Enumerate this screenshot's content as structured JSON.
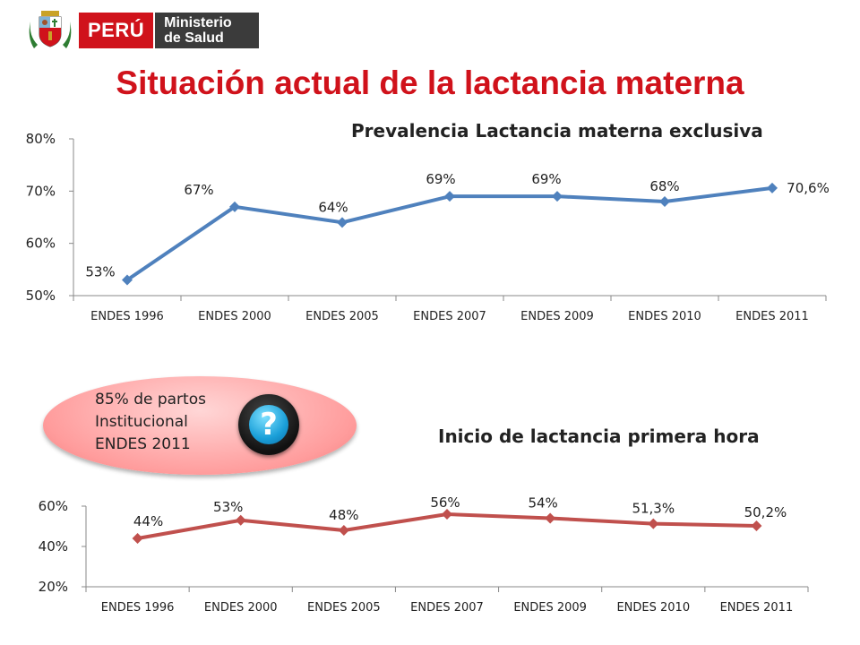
{
  "header": {
    "brand_country": "PERÚ",
    "brand_ministry_line1": "Ministerio",
    "brand_ministry_line2": "de Salud",
    "brand_red": "#d0121b",
    "brand_gray": "#3b3b3b",
    "crest_icon": "peru-coat-of-arms-icon"
  },
  "slide": {
    "title": "Situación actual de la lactancia materna",
    "title_color": "#d0121b"
  },
  "callout": {
    "lines": [
      "85% de partos",
      "Institucional",
      "ENDES 2011"
    ],
    "icon": "question-mark-icon"
  },
  "chart_data": [
    {
      "type": "line",
      "title": "Prevalencia  Lactancia materna exclusiva",
      "categories": [
        "ENDES 1996",
        "ENDES  2000",
        "ENDES 2005",
        "ENDES 2007",
        "ENDES  2009",
        "ENDES 2010",
        "ENDES 2011"
      ],
      "series": [
        {
          "values": [
            53,
            67,
            64,
            69,
            69,
            68,
            70.6
          ],
          "labels": [
            "53%",
            "67%",
            "64%",
            "69%",
            "69%",
            "68%",
            "70,6%"
          ],
          "color": "#4f81bd"
        }
      ],
      "yticks": [
        "50%",
        "60%",
        "70%",
        "80%"
      ],
      "ylim": [
        50,
        80
      ],
      "grid": "none",
      "legend": "none"
    },
    {
      "type": "line",
      "title": "Inicio de lactancia primera hora",
      "categories": [
        "ENDES 1996",
        "ENDES  2000",
        "ENDES 2005",
        "ENDES 2007",
        "ENDES  2009",
        "ENDES 2010",
        "ENDES 2011"
      ],
      "series": [
        {
          "values": [
            44,
            53,
            48,
            56,
            54,
            51.3,
            50.2
          ],
          "labels": [
            "44%",
            "53%",
            "48%",
            "56%",
            "54%",
            "51,3%",
            "50,2%"
          ],
          "color": "#c0504d"
        }
      ],
      "yticks": [
        "20%",
        "40%",
        "60%"
      ],
      "ylim": [
        20,
        60
      ],
      "grid": "none",
      "legend": "none"
    }
  ]
}
